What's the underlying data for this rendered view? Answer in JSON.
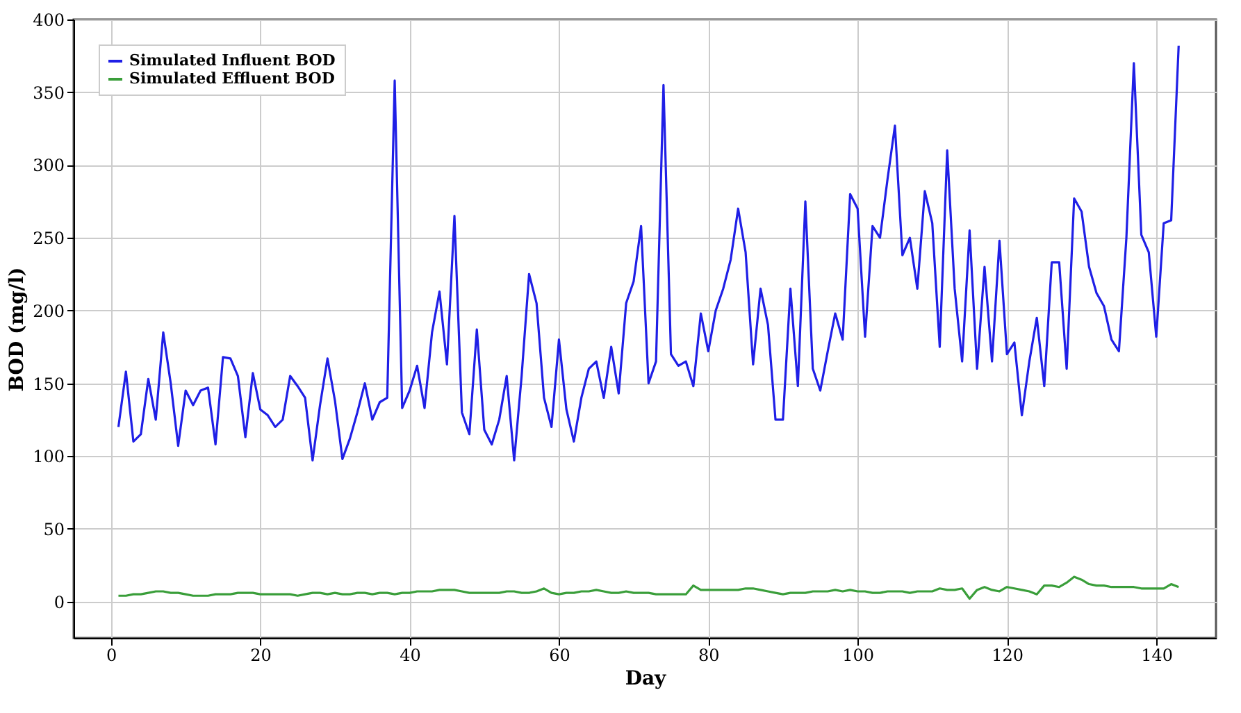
{
  "chart_data": {
    "type": "line",
    "xlabel": "Day",
    "ylabel": "BOD (mg/l)",
    "x": [
      1,
      2,
      3,
      4,
      5,
      6,
      7,
      8,
      9,
      10,
      11,
      12,
      13,
      14,
      15,
      16,
      17,
      18,
      19,
      20,
      21,
      22,
      23,
      24,
      25,
      26,
      27,
      28,
      29,
      30,
      31,
      32,
      33,
      34,
      35,
      36,
      37,
      38,
      39,
      40,
      41,
      42,
      43,
      44,
      45,
      46,
      47,
      48,
      49,
      50,
      51,
      52,
      53,
      54,
      55,
      56,
      57,
      58,
      59,
      60,
      61,
      62,
      63,
      64,
      65,
      66,
      67,
      68,
      69,
      70,
      71,
      72,
      73,
      74,
      75,
      76,
      77,
      78,
      79,
      80,
      81,
      82,
      83,
      84,
      85,
      86,
      87,
      88,
      89,
      90,
      91,
      92,
      93,
      94,
      95,
      96,
      97,
      98,
      99,
      100,
      101,
      102,
      103,
      104,
      105,
      106,
      107,
      108,
      109,
      110,
      111,
      112,
      113,
      114,
      115,
      116,
      117,
      118,
      119,
      120,
      121,
      122,
      123,
      124,
      125,
      126,
      127,
      128,
      129,
      130,
      131,
      132,
      133,
      134,
      135,
      136,
      137,
      138,
      139,
      140,
      141,
      142,
      143
    ],
    "series": [
      {
        "name": "Simulated Influent BOD",
        "color": "#1f1fe6",
        "values": [
          120,
          158,
          110,
          115,
          153,
          125,
          185,
          150,
          107,
          145,
          135,
          145,
          147,
          108,
          168,
          167,
          155,
          113,
          157,
          132,
          128,
          120,
          125,
          155,
          148,
          140,
          97,
          135,
          167,
          138,
          98,
          112,
          130,
          150,
          125,
          137,
          140,
          358,
          133,
          145,
          162,
          133,
          185,
          213,
          163,
          265,
          130,
          115,
          187,
          118,
          108,
          125,
          155,
          97,
          155,
          225,
          205,
          140,
          120,
          180,
          132,
          110,
          140,
          160,
          165,
          140,
          175,
          143,
          205,
          220,
          258,
          150,
          165,
          355,
          170,
          162,
          165,
          148,
          198,
          172,
          200,
          215,
          235,
          270,
          240,
          163,
          215,
          190,
          125,
          125,
          215,
          148,
          275,
          160,
          145,
          172,
          198,
          180,
          280,
          270,
          182,
          258,
          250,
          290,
          327,
          238,
          250,
          215,
          282,
          260,
          175,
          310,
          215,
          165,
          255,
          160,
          230,
          165,
          248,
          170,
          178,
          128,
          165,
          195,
          148,
          233,
          233,
          160,
          277,
          268,
          230,
          212,
          203,
          180,
          172,
          250,
          370,
          252,
          240,
          182,
          260,
          262,
          382
        ]
      },
      {
        "name": "Simulated Effluent BOD",
        "color": "#3a9e3a",
        "values": [
          4,
          4,
          5,
          5,
          6,
          7,
          7,
          6,
          6,
          5,
          4,
          4,
          4,
          5,
          5,
          5,
          6,
          6,
          6,
          5,
          5,
          5,
          5,
          5,
          4,
          5,
          6,
          6,
          5,
          6,
          5,
          5,
          6,
          6,
          5,
          6,
          6,
          5,
          6,
          6,
          7,
          7,
          7,
          8,
          8,
          8,
          7,
          6,
          6,
          6,
          6,
          6,
          7,
          7,
          6,
          6,
          7,
          9,
          6,
          5,
          6,
          6,
          7,
          7,
          8,
          7,
          6,
          6,
          7,
          6,
          6,
          6,
          5,
          5,
          5,
          5,
          5,
          11,
          8,
          8,
          8,
          8,
          8,
          8,
          9,
          9,
          8,
          7,
          6,
          5,
          6,
          6,
          6,
          7,
          7,
          7,
          8,
          7,
          8,
          7,
          7,
          6,
          6,
          7,
          7,
          7,
          6,
          7,
          7,
          7,
          9,
          8,
          8,
          9,
          2,
          8,
          10,
          8,
          7,
          10,
          9,
          8,
          7,
          5,
          11,
          11,
          10,
          13,
          17,
          15,
          12,
          11,
          11,
          10,
          10,
          10,
          10,
          9,
          9,
          9,
          9,
          12,
          10
        ]
      }
    ],
    "xlim": [
      -5,
      148
    ],
    "xticks": [
      0,
      20,
      40,
      60,
      80,
      100,
      120,
      140
    ],
    "ylim": [
      -25,
      400
    ],
    "yticks": [
      0,
      50,
      100,
      150,
      200,
      250,
      300,
      350,
      400
    ],
    "grid": true,
    "legend": "top left",
    "line_style": "solid"
  }
}
